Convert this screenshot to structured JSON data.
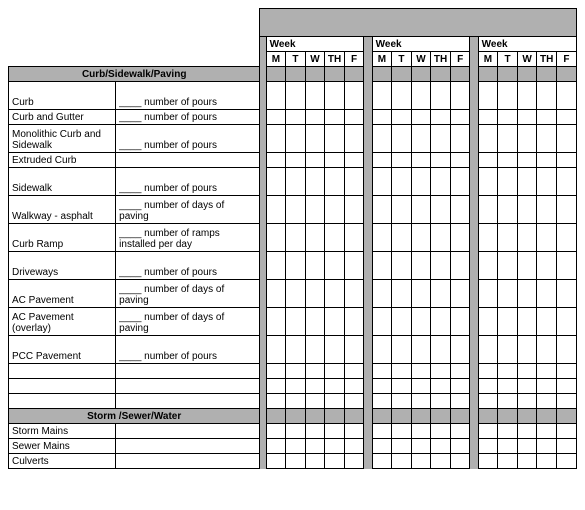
{
  "colors": {
    "header_gray": "#b0b0b0",
    "grid_border": "#000000",
    "background": "#ffffff"
  },
  "week_label": "Week",
  "days": [
    "M",
    "T",
    "W",
    "TH",
    "F"
  ],
  "sections": [
    {
      "title": "Curb/Sidewalk/Paving",
      "rows": [
        {
          "label": "Curb",
          "desc": "____ number of pours",
          "tall": true
        },
        {
          "label": "Curb and Gutter",
          "desc": "____ number of pours"
        },
        {
          "label": "Monolithic Curb and Sidewalk",
          "desc": "____ number of pours",
          "tall": true
        },
        {
          "label": "Extruded Curb",
          "desc": ""
        },
        {
          "label": "Sidewalk",
          "desc": "____ number of pours",
          "tall": true
        },
        {
          "label": "Walkway - asphalt",
          "desc": "____ number of days of paving",
          "tall": true
        },
        {
          "label": "Curb Ramp",
          "desc": "____ number of ramps installed per day",
          "tall": true
        },
        {
          "label": "Driveways",
          "desc": "____ number of pours",
          "tall": true
        },
        {
          "label": "AC Pavement",
          "desc": "____ number of days of paving",
          "tall": true
        },
        {
          "label": "AC Pavement (overlay)",
          "desc": "____ number of days of paving",
          "tall": true
        },
        {
          "label": "PCC Pavement",
          "desc": "____ number of pours",
          "tall": true
        },
        {
          "label": "",
          "desc": ""
        },
        {
          "label": "",
          "desc": ""
        },
        {
          "label": "",
          "desc": ""
        }
      ]
    },
    {
      "title": "Storm /Sewer/Water",
      "rows": [
        {
          "label": "Storm Mains",
          "desc": ""
        },
        {
          "label": "Sewer Mains",
          "desc": ""
        },
        {
          "label": "Culverts",
          "desc": ""
        }
      ]
    }
  ]
}
